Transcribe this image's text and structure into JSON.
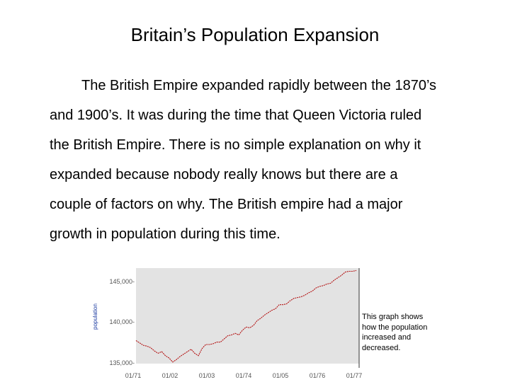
{
  "slide": {
    "title": "Britain’s Population Expansion",
    "paragraph_lines": [
      "The British Empire expanded rapidly between the 1870’s",
      "and 1900’s.  It was during the time that Queen Victoria ruled",
      "the British Empire.  There is no simple explanation on why it",
      "expanded because nobody really knows but there are a",
      "couple of factors on why.  The British empire had a major",
      "growth in population during this time."
    ],
    "caption": "This graph shows how the population increased and decreased."
  },
  "chart_data": {
    "type": "line",
    "ylabel": "population",
    "y_tick_labels": [
      "145,000-",
      "140,000-",
      "135,000-"
    ],
    "x_tick_labels": [
      "01/71",
      "01/02",
      "01/03",
      "01/74",
      "01/05",
      "01/76",
      "01/77"
    ],
    "colors": {
      "line": "#b31010",
      "plot_bg": "#e3e3e3",
      "axis_text": "#555555"
    },
    "series": [
      {
        "x": [
          0,
          3,
          6,
          9,
          12,
          15,
          18,
          21,
          24,
          27,
          30,
          33,
          36,
          39,
          42,
          45,
          48,
          51,
          54,
          57,
          60,
          63,
          66,
          69,
          72,
          75,
          78,
          81,
          84,
          87,
          90,
          93,
          96,
          99,
          102,
          105,
          108,
          111,
          114,
          117,
          120,
          123,
          126,
          129,
          132,
          135,
          138,
          141,
          144,
          147,
          150,
          153,
          156,
          159,
          162,
          165,
          168,
          171,
          174,
          177,
          180
        ],
        "values": [
          137.9,
          137.6,
          137.3,
          137.2,
          137.0,
          136.6,
          136.3,
          136.5,
          136.0,
          135.7,
          135.2,
          135.5,
          135.9,
          136.2,
          136.5,
          136.8,
          136.3,
          136.0,
          136.9,
          137.4,
          137.4,
          137.5,
          137.7,
          137.7,
          138.1,
          138.5,
          138.6,
          138.8,
          138.6,
          139.2,
          139.6,
          139.5,
          139.8,
          140.4,
          140.7,
          141.1,
          141.4,
          141.7,
          141.9,
          142.4,
          142.4,
          142.5,
          142.9,
          143.2,
          143.3,
          143.4,
          143.6,
          143.9,
          144.1,
          144.5,
          144.7,
          144.8,
          145.0,
          145.1,
          145.5,
          145.8,
          146.1,
          146.5,
          146.6,
          146.6,
          146.7
        ]
      }
    ]
  }
}
